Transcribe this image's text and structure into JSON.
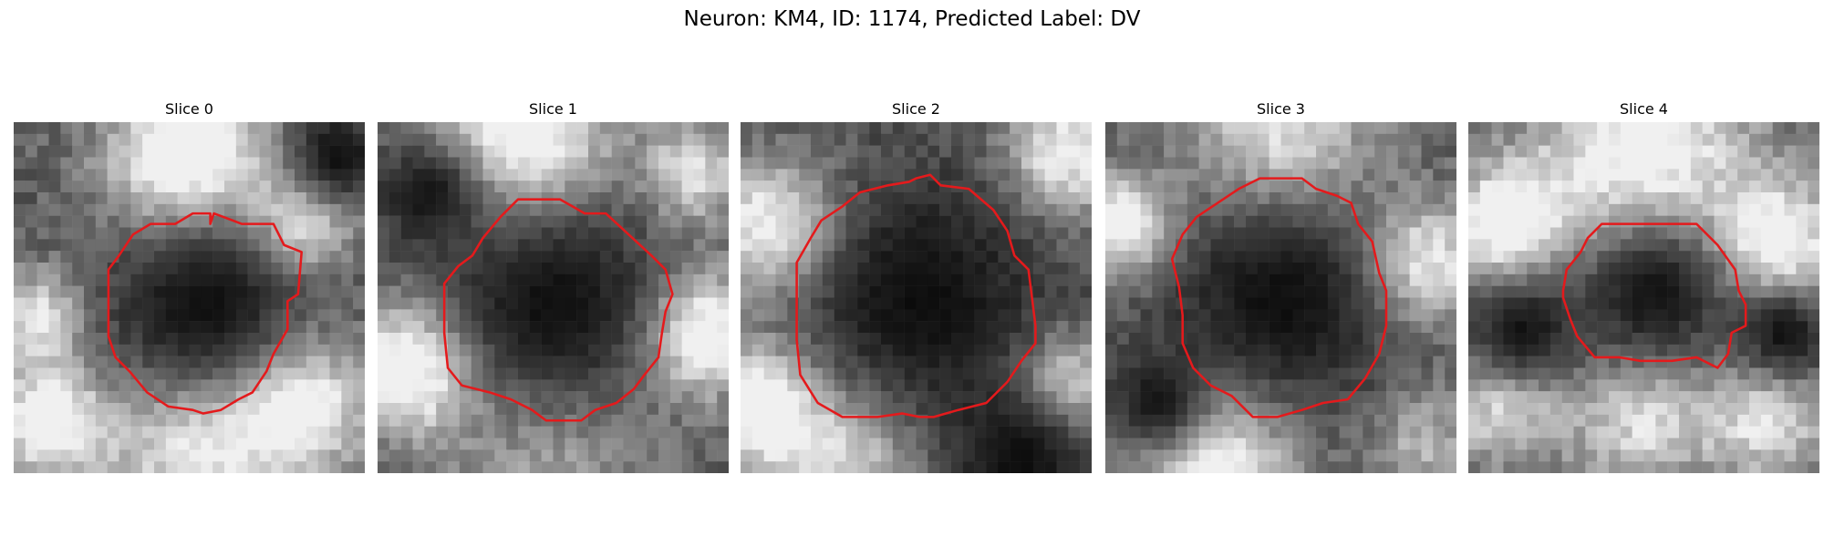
{
  "figure": {
    "title": "Neuron: KM4, ID: 1174, Predicted Label: DV",
    "contour_color": "#e41a1c"
  },
  "panels": [
    {
      "title": "Slice 0",
      "contour": [
        [
          0.56,
          0.29
        ],
        [
          0.57,
          0.26
        ],
        [
          0.65,
          0.29
        ],
        [
          0.74,
          0.29
        ],
        [
          0.77,
          0.35
        ],
        [
          0.82,
          0.37
        ],
        [
          0.81,
          0.49
        ],
        [
          0.78,
          0.51
        ],
        [
          0.78,
          0.59
        ],
        [
          0.74,
          0.66
        ],
        [
          0.72,
          0.71
        ],
        [
          0.68,
          0.77
        ],
        [
          0.64,
          0.79
        ],
        [
          0.59,
          0.82
        ],
        [
          0.54,
          0.83
        ],
        [
          0.51,
          0.82
        ],
        [
          0.44,
          0.81
        ],
        [
          0.38,
          0.77
        ],
        [
          0.33,
          0.71
        ],
        [
          0.29,
          0.67
        ],
        [
          0.27,
          0.61
        ],
        [
          0.27,
          0.51
        ],
        [
          0.27,
          0.42
        ],
        [
          0.3,
          0.38
        ],
        [
          0.34,
          0.32
        ],
        [
          0.39,
          0.29
        ],
        [
          0.46,
          0.29
        ],
        [
          0.51,
          0.26
        ],
        [
          0.56,
          0.26
        ]
      ],
      "texture_seed": 11,
      "blobs": [
        [
          0.5,
          0.12,
          0.16,
          0.95
        ],
        [
          0.82,
          0.3,
          0.1,
          0.7
        ],
        [
          0.07,
          0.55,
          0.09,
          0.6
        ],
        [
          0.1,
          0.85,
          0.12,
          0.75
        ],
        [
          0.8,
          0.8,
          0.14,
          0.85
        ],
        [
          0.5,
          0.92,
          0.16,
          0.65
        ]
      ],
      "dark": [
        [
          0.55,
          0.52,
          0.27
        ],
        [
          0.92,
          0.1,
          0.12
        ]
      ]
    },
    {
      "title": "Slice 1",
      "contour": [
        [
          0.4,
          0.22
        ],
        [
          0.52,
          0.22
        ],
        [
          0.59,
          0.26
        ],
        [
          0.65,
          0.26
        ],
        [
          0.78,
          0.38
        ],
        [
          0.82,
          0.42
        ],
        [
          0.84,
          0.49
        ],
        [
          0.82,
          0.54
        ],
        [
          0.81,
          0.6
        ],
        [
          0.8,
          0.67
        ],
        [
          0.76,
          0.72
        ],
        [
          0.73,
          0.76
        ],
        [
          0.68,
          0.8
        ],
        [
          0.62,
          0.82
        ],
        [
          0.58,
          0.85
        ],
        [
          0.48,
          0.85
        ],
        [
          0.44,
          0.82
        ],
        [
          0.38,
          0.79
        ],
        [
          0.32,
          0.77
        ],
        [
          0.24,
          0.75
        ],
        [
          0.2,
          0.7
        ],
        [
          0.19,
          0.6
        ],
        [
          0.19,
          0.46
        ],
        [
          0.23,
          0.41
        ],
        [
          0.27,
          0.38
        ],
        [
          0.3,
          0.33
        ],
        [
          0.35,
          0.27
        ],
        [
          0.4,
          0.22
        ]
      ],
      "texture_seed": 23,
      "blobs": [
        [
          0.4,
          0.05,
          0.18,
          0.9
        ],
        [
          0.9,
          0.15,
          0.1,
          0.6
        ],
        [
          0.1,
          0.7,
          0.13,
          0.9
        ],
        [
          0.92,
          0.6,
          0.12,
          0.9
        ],
        [
          0.5,
          0.95,
          0.2,
          0.35
        ]
      ],
      "dark": [
        [
          0.5,
          0.52,
          0.3
        ],
        [
          0.15,
          0.2,
          0.15
        ]
      ]
    },
    {
      "title": "Slice 2",
      "contour": [
        [
          0.5,
          0.16
        ],
        [
          0.54,
          0.15
        ],
        [
          0.57,
          0.18
        ],
        [
          0.65,
          0.19
        ],
        [
          0.72,
          0.25
        ],
        [
          0.76,
          0.31
        ],
        [
          0.78,
          0.38
        ],
        [
          0.82,
          0.42
        ],
        [
          0.83,
          0.5
        ],
        [
          0.84,
          0.58
        ],
        [
          0.84,
          0.63
        ],
        [
          0.8,
          0.68
        ],
        [
          0.76,
          0.74
        ],
        [
          0.7,
          0.8
        ],
        [
          0.62,
          0.82
        ],
        [
          0.55,
          0.84
        ],
        [
          0.51,
          0.84
        ],
        [
          0.46,
          0.83
        ],
        [
          0.39,
          0.84
        ],
        [
          0.29,
          0.84
        ],
        [
          0.22,
          0.8
        ],
        [
          0.17,
          0.72
        ],
        [
          0.16,
          0.62
        ],
        [
          0.16,
          0.51
        ],
        [
          0.16,
          0.4
        ],
        [
          0.2,
          0.33
        ],
        [
          0.23,
          0.28
        ],
        [
          0.29,
          0.24
        ],
        [
          0.34,
          0.2
        ],
        [
          0.42,
          0.18
        ],
        [
          0.48,
          0.17
        ]
      ],
      "texture_seed": 37,
      "blobs": [
        [
          0.1,
          0.3,
          0.13,
          0.8
        ],
        [
          0.92,
          0.1,
          0.12,
          0.7
        ],
        [
          0.05,
          0.8,
          0.12,
          0.85
        ],
        [
          0.92,
          0.75,
          0.1,
          0.8
        ],
        [
          0.3,
          0.95,
          0.15,
          0.6
        ]
      ],
      "dark": [
        [
          0.52,
          0.5,
          0.33
        ],
        [
          0.8,
          0.95,
          0.2
        ]
      ]
    },
    {
      "title": "Slice 3",
      "contour": [
        [
          0.44,
          0.16
        ],
        [
          0.56,
          0.16
        ],
        [
          0.6,
          0.19
        ],
        [
          0.66,
          0.21
        ],
        [
          0.7,
          0.23
        ],
        [
          0.72,
          0.29
        ],
        [
          0.76,
          0.34
        ],
        [
          0.78,
          0.43
        ],
        [
          0.8,
          0.48
        ],
        [
          0.8,
          0.58
        ],
        [
          0.78,
          0.66
        ],
        [
          0.74,
          0.73
        ],
        [
          0.69,
          0.79
        ],
        [
          0.62,
          0.8
        ],
        [
          0.56,
          0.82
        ],
        [
          0.49,
          0.84
        ],
        [
          0.42,
          0.84
        ],
        [
          0.36,
          0.78
        ],
        [
          0.3,
          0.75
        ],
        [
          0.25,
          0.7
        ],
        [
          0.22,
          0.63
        ],
        [
          0.22,
          0.55
        ],
        [
          0.21,
          0.47
        ],
        [
          0.19,
          0.39
        ],
        [
          0.22,
          0.32
        ],
        [
          0.26,
          0.27
        ],
        [
          0.32,
          0.23
        ],
        [
          0.38,
          0.19
        ],
        [
          0.44,
          0.16
        ]
      ],
      "texture_seed": 51,
      "blobs": [
        [
          0.5,
          0.05,
          0.18,
          0.65
        ],
        [
          0.05,
          0.3,
          0.1,
          0.8
        ],
        [
          0.9,
          0.4,
          0.12,
          0.75
        ],
        [
          0.3,
          0.95,
          0.16,
          0.85
        ],
        [
          0.9,
          0.9,
          0.1,
          0.4
        ]
      ],
      "dark": [
        [
          0.5,
          0.5,
          0.3
        ],
        [
          0.15,
          0.8,
          0.15
        ]
      ]
    },
    {
      "title": "Slice 4",
      "contour": [
        [
          0.38,
          0.29
        ],
        [
          0.45,
          0.29
        ],
        [
          0.55,
          0.29
        ],
        [
          0.65,
          0.29
        ],
        [
          0.71,
          0.35
        ],
        [
          0.76,
          0.42
        ],
        [
          0.77,
          0.48
        ],
        [
          0.79,
          0.52
        ],
        [
          0.79,
          0.58
        ],
        [
          0.75,
          0.6
        ],
        [
          0.74,
          0.66
        ],
        [
          0.71,
          0.7
        ],
        [
          0.65,
          0.67
        ],
        [
          0.58,
          0.68
        ],
        [
          0.49,
          0.68
        ],
        [
          0.43,
          0.67
        ],
        [
          0.36,
          0.67
        ],
        [
          0.31,
          0.61
        ],
        [
          0.29,
          0.56
        ],
        [
          0.27,
          0.5
        ],
        [
          0.27,
          0.48
        ],
        [
          0.28,
          0.42
        ],
        [
          0.32,
          0.37
        ],
        [
          0.34,
          0.33
        ],
        [
          0.38,
          0.29
        ]
      ],
      "texture_seed": 67,
      "blobs": [
        [
          0.5,
          0.1,
          0.22,
          0.75
        ],
        [
          0.1,
          0.3,
          0.12,
          0.75
        ],
        [
          0.88,
          0.35,
          0.12,
          0.75
        ],
        [
          0.1,
          0.8,
          0.12,
          0.6
        ],
        [
          0.85,
          0.85,
          0.12,
          0.55
        ],
        [
          0.5,
          0.85,
          0.14,
          0.55
        ]
      ],
      "dark": [
        [
          0.53,
          0.48,
          0.2
        ],
        [
          0.15,
          0.6,
          0.15
        ],
        [
          0.9,
          0.6,
          0.12
        ]
      ]
    }
  ]
}
